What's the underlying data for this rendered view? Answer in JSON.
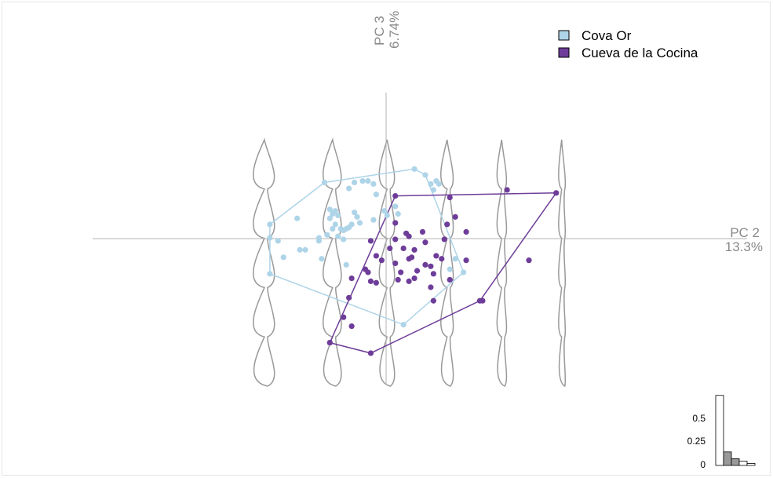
{
  "chart_data": {
    "type": "scatter",
    "x_axis": {
      "name": "PC 2",
      "variance": "13.3%"
    },
    "y_axis": {
      "name": "PC 3",
      "variance": "6.74%"
    },
    "xlim": [
      -0.105,
      0.135
    ],
    "ylim": [
      -0.095,
      0.1
    ],
    "legend_position": "top-right",
    "series": [
      {
        "name": "Cova Or",
        "color": "#aed4e8",
        "marker": "circle",
        "hull": [
          [
            -0.04,
            0.012
          ],
          [
            -0.02,
            0.04
          ],
          [
            0.013,
            0.049
          ],
          [
            0.017,
            0.045
          ],
          [
            0.031,
            -0.02
          ],
          [
            0.009,
            -0.055
          ],
          [
            -0.04,
            -0.021
          ]
        ],
        "points": [
          [
            -0.04,
            0.003
          ],
          [
            -0.037,
            0.001
          ],
          [
            -0.035,
            -0.01
          ],
          [
            -0.03,
            0.016
          ],
          [
            -0.029,
            -0.005
          ],
          [
            -0.027,
            -0.005
          ],
          [
            -0.022,
            0.003
          ],
          [
            -0.022,
            0.001
          ],
          [
            -0.021,
            -0.011
          ],
          [
            -0.019,
            0.005
          ],
          [
            -0.018,
            0.022
          ],
          [
            -0.018,
            0.016
          ],
          [
            -0.017,
            0.019
          ],
          [
            -0.017,
            0.009
          ],
          [
            -0.016,
            0.021
          ],
          [
            -0.016,
            0.012
          ],
          [
            -0.015,
            0.018
          ],
          [
            -0.015,
            0.004
          ],
          [
            -0.014,
            0.009
          ],
          [
            -0.013,
            0.008
          ],
          [
            -0.013,
            0.002
          ],
          [
            -0.012,
            0.009
          ],
          [
            -0.012,
            -0.015
          ],
          [
            -0.011,
            0.036
          ],
          [
            -0.011,
            0.01
          ],
          [
            -0.01,
            0.012
          ],
          [
            -0.009,
            0.02
          ],
          [
            -0.009,
            0.04
          ],
          [
            -0.008,
            0.017
          ],
          [
            -0.007,
            0.013
          ],
          [
            -0.006,
            0.041
          ],
          [
            -0.004,
            0.041
          ],
          [
            -0.003,
            0.001
          ],
          [
            -0.002,
            0.039
          ],
          [
            -0.001,
            0.032
          ],
          [
            -0.002,
            0.015
          ],
          [
            0.002,
            0.021
          ],
          [
            0.003,
            0.018
          ],
          [
            0.006,
            0.024
          ],
          [
            0.007,
            0.019
          ],
          [
            0.019,
            0.039
          ],
          [
            0.02,
            0.035
          ],
          [
            0.021,
            0.041
          ],
          [
            0.022,
            0.039
          ],
          [
            0.028,
            -0.011
          ],
          [
            0.026,
            -0.018
          ]
        ]
      },
      {
        "name": "Cueva de la Cocina",
        "color": "#6e3d99",
        "marker": "circle",
        "hull": [
          [
            -0.018,
            -0.067
          ],
          [
            -0.003,
            -0.074
          ],
          [
            0.037,
            -0.039
          ],
          [
            0.065,
            0.033
          ],
          [
            0.006,
            0.031
          ]
        ],
        "points": [
          [
            -0.018,
            -0.067
          ],
          [
            -0.013,
            -0.05
          ],
          [
            -0.01,
            -0.056
          ],
          [
            -0.011,
            -0.037
          ],
          [
            -0.01,
            -0.024
          ],
          [
            -0.005,
            -0.018
          ],
          [
            -0.003,
            0.001
          ],
          [
            -0.004,
            -0.02
          ],
          [
            -0.003,
            -0.026
          ],
          [
            -0.001,
            -0.009
          ],
          [
            -0.001,
            -0.027
          ],
          [
            0.001,
            -0.012
          ],
          [
            0.004,
            -0.004
          ],
          [
            0.006,
            0.013
          ],
          [
            0.006,
            0.002
          ],
          [
            0.006,
            -0.014
          ],
          [
            0.007,
            -0.025
          ],
          [
            0.008,
            -0.02
          ],
          [
            0.009,
            -0.004
          ],
          [
            0.01,
            0.006
          ],
          [
            0.011,
            0.004
          ],
          [
            0.011,
            -0.011
          ],
          [
            0.011,
            -0.026
          ],
          [
            0.012,
            -0.01
          ],
          [
            0.013,
            -0.005
          ],
          [
            0.013,
            -0.024
          ],
          [
            0.014,
            -0.019
          ],
          [
            0.016,
            0.007
          ],
          [
            0.017,
            -0.015
          ],
          [
            0.017,
            0.0
          ],
          [
            0.019,
            -0.03
          ],
          [
            0.019,
            -0.016
          ],
          [
            0.02,
            -0.021
          ],
          [
            0.021,
            -0.009
          ],
          [
            0.02,
            -0.039
          ],
          [
            0.023,
            -0.011
          ],
          [
            0.024,
            0.002
          ],
          [
            0.025,
            0.012
          ],
          [
            0.026,
            0.03
          ],
          [
            0.028,
            0.017
          ],
          [
            0.026,
            -0.025
          ],
          [
            0.032,
            0.007
          ],
          [
            0.032,
            -0.012
          ],
          [
            0.038,
            -0.039
          ],
          [
            0.047,
            0.035
          ],
          [
            0.055,
            -0.012
          ]
        ]
      }
    ],
    "tooth_outlines_x": [
      -0.042,
      -0.017,
      0.003,
      0.025,
      0.045,
      0.067
    ],
    "scree_plot": {
      "type": "bar",
      "tick_labels": [
        "0",
        "0.25",
        "0.5"
      ],
      "ylim": [
        0,
        0.75
      ],
      "values": [
        0.69,
        0.133,
        0.067,
        0.043,
        0.02
      ],
      "highlighted_components": [
        2,
        3
      ]
    }
  }
}
